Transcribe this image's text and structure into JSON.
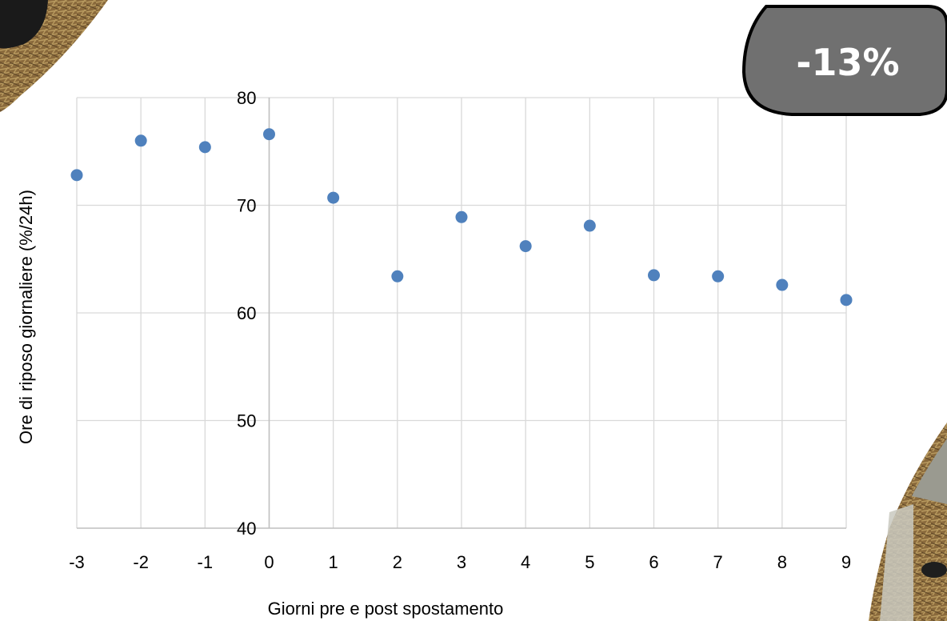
{
  "badge": {
    "text": "-13%",
    "fill": "#707070",
    "text_color": "#ffffff"
  },
  "chart_data": {
    "type": "scatter",
    "x": [
      -3,
      -2,
      -1,
      0,
      1,
      2,
      3,
      4,
      5,
      6,
      7,
      8,
      9
    ],
    "y": [
      72.8,
      76.0,
      75.4,
      76.6,
      70.7,
      63.4,
      68.9,
      66.2,
      68.1,
      63.5,
      63.4,
      62.6,
      61.2
    ],
    "xlabel": "Giorni pre e post spostamento",
    "ylabel": "Ore di riposo giornaliere (%/24h)",
    "xlim": [
      -3,
      9
    ],
    "ylim": [
      40,
      80
    ],
    "x_ticks": [
      -3,
      -2,
      -1,
      0,
      1,
      2,
      3,
      4,
      5,
      6,
      7,
      8,
      9
    ],
    "y_ticks": [
      40,
      50,
      60,
      70,
      80
    ],
    "grid": true,
    "marker_color": "#4f81bd"
  }
}
